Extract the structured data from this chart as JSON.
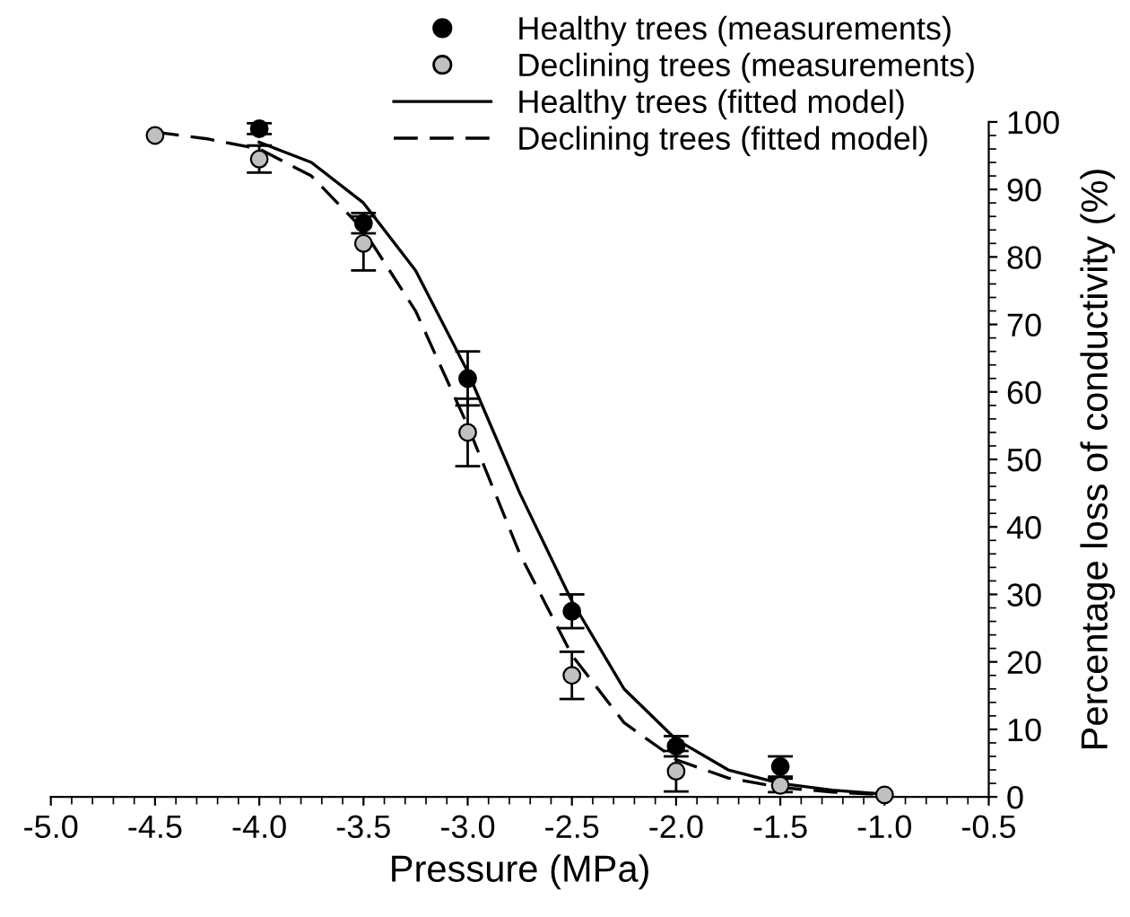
{
  "chart_data": {
    "type": "scatter",
    "xlabel": "Pressure (MPa)",
    "ylabel": "Percentage loss of conductivity (%)",
    "xlim": [
      -5.0,
      -0.5
    ],
    "xticks": [
      {
        "value": -5.0,
        "label": "-5.0"
      },
      {
        "value": -4.5,
        "label": "-4.5"
      },
      {
        "value": -4.0,
        "label": "-4.0"
      },
      {
        "value": -3.5,
        "label": "-3.5"
      },
      {
        "value": -3.0,
        "label": "-3.0"
      },
      {
        "value": -2.5,
        "label": "-2.5"
      },
      {
        "value": -2.0,
        "label": "-2.0"
      },
      {
        "value": -1.5,
        "label": "-1.5"
      },
      {
        "value": -1.0,
        "label": "-1.0"
      },
      {
        "value": -0.5,
        "label": "-0.5"
      }
    ],
    "ylim": [
      0,
      100
    ],
    "yticks": [
      0,
      10,
      20,
      30,
      40,
      50,
      60,
      70,
      80,
      90,
      100
    ],
    "grid": false,
    "legend": "top right",
    "series": [
      {
        "name": "Healthy trees (measurements)",
        "marker": "circle",
        "color": "#000000",
        "x": [
          -4.0,
          -3.5,
          -3.0,
          -2.5,
          -2.0,
          -1.5
        ],
        "values": [
          99,
          85,
          62,
          27.5,
          7.5,
          4.5
        ],
        "errors": [
          0.8,
          1.5,
          4,
          2.5,
          1.5,
          1.5
        ]
      },
      {
        "name": "Declining trees (measurements)",
        "marker": "circle",
        "color": "#c0c0c0",
        "x": [
          -4.5,
          -4.0,
          -3.5,
          -3.0,
          -2.5,
          -2.0,
          -1.5,
          -1.0
        ],
        "values": [
          98,
          94.5,
          82,
          54,
          18,
          3.8,
          1.7,
          0.3
        ],
        "errors": [
          null,
          2,
          4,
          5,
          3.5,
          3,
          1,
          null
        ]
      },
      {
        "name": "Healthy trees (fitted model)",
        "type": "line",
        "line_style": "solid",
        "color": "#000000",
        "x": [
          -4.0,
          -3.75,
          -3.5,
          -3.25,
          -3.0,
          -2.75,
          -2.5,
          -2.25,
          -2.0,
          -1.75,
          -1.5,
          -1.25,
          -1.0
        ],
        "values": [
          97,
          94,
          88,
          78,
          63,
          45,
          29,
          16,
          8.5,
          4,
          2,
          1,
          0.4
        ]
      },
      {
        "name": "Declining trees (fitted model)",
        "type": "line",
        "line_style": "dashed",
        "color": "#000000",
        "x": [
          -4.5,
          -4.25,
          -4.0,
          -3.75,
          -3.5,
          -3.25,
          -3.0,
          -2.75,
          -2.5,
          -2.25,
          -2.0,
          -1.75,
          -1.5,
          -1.25,
          -1.0
        ],
        "values": [
          98.5,
          97.5,
          96,
          92,
          84,
          72,
          55,
          36,
          21,
          11,
          5.5,
          2.8,
          1.4,
          0.7,
          0.3
        ]
      }
    ]
  }
}
